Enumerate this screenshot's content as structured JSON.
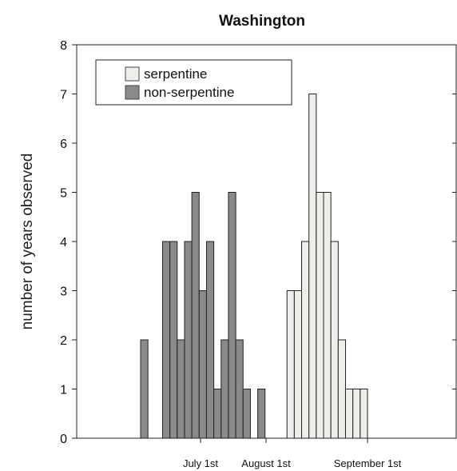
{
  "chart_data": {
    "type": "bar",
    "title": "Washington",
    "xlabel": "",
    "ylabel": "number of years observed",
    "ylim": [
      0,
      8
    ],
    "yticks": [
      0,
      1,
      2,
      3,
      4,
      5,
      6,
      7,
      8
    ],
    "x_tick_labels": [
      "July 1st",
      "August 1st",
      "September 1st"
    ],
    "grid": false,
    "legend_position": "top-left",
    "series": [
      {
        "name": "serpentine",
        "color": "#eeeeea",
        "values": [
          0,
          0,
          0,
          0,
          0,
          0,
          0,
          0,
          0,
          0,
          0,
          0,
          0,
          0,
          0,
          0,
          0,
          0,
          0,
          0,
          3,
          3,
          4,
          7,
          5,
          5,
          4,
          2,
          1,
          1,
          1
        ]
      },
      {
        "name": "non-serpentine",
        "color": "#8a8a8a",
        "values": [
          2,
          0,
          0,
          4,
          4,
          2,
          4,
          5,
          3,
          4,
          1,
          2,
          5,
          2,
          1,
          0,
          1,
          0,
          0,
          0,
          0,
          0,
          0,
          0,
          0,
          0,
          0,
          0,
          0,
          0,
          0
        ]
      }
    ]
  }
}
